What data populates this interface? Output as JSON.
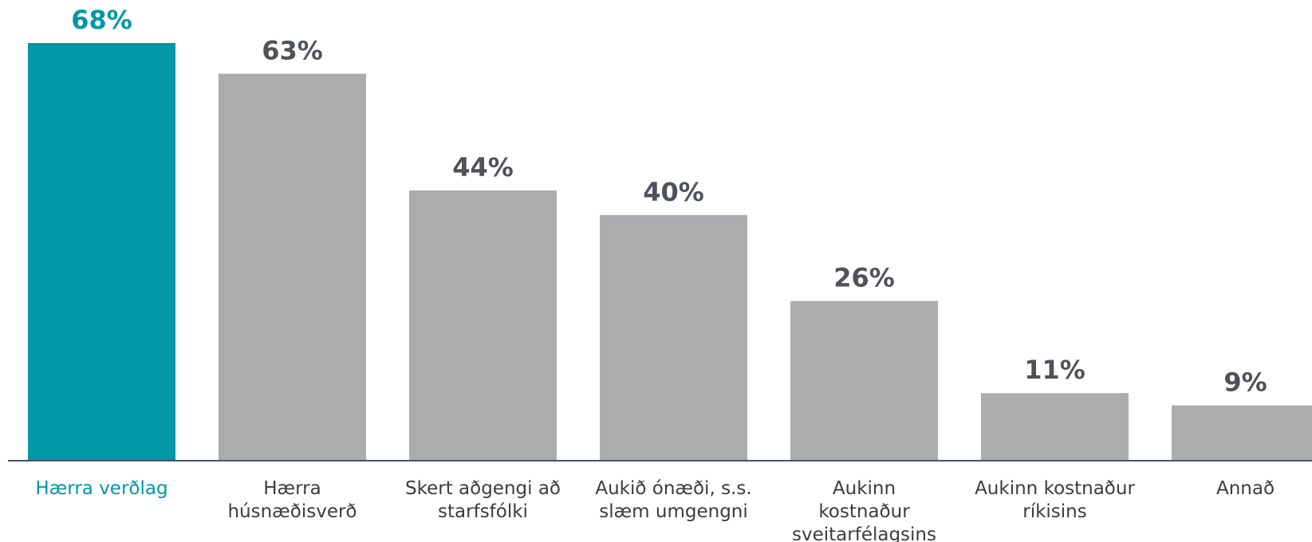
{
  "chart_data": {
    "type": "bar",
    "categories": [
      "Hærra verðlag",
      "Hærra húsnæðisverð",
      "Skert aðgengi að starfsfólki",
      "Aukið ónæði, s.s. slæm umgengni",
      "Aukinn kostnaður sveitarfélagsins",
      "Aukinn kostnaður ríkisins",
      "Annað"
    ],
    "category_lines": [
      [
        "Hærra verðlag"
      ],
      [
        "Hærra",
        "húsnæðisverð"
      ],
      [
        "Skert aðgengi að",
        "starfsfólki"
      ],
      [
        "Aukið ónæði, s.s.",
        "slæm umgengni"
      ],
      [
        "Aukinn",
        "kostnaður",
        "sveitarfélagsins"
      ],
      [
        "Aukinn kostnaður",
        "ríkisins"
      ],
      [
        "Annað"
      ]
    ],
    "values": [
      68,
      63,
      44,
      40,
      26,
      11,
      9
    ],
    "value_labels": [
      "68%",
      "63%",
      "44%",
      "40%",
      "26%",
      "11%",
      "9%"
    ],
    "highlight_index": 0,
    "ylim": [
      0,
      68
    ],
    "grid": false,
    "colors": {
      "highlight_bar": "#0097a7",
      "bar": "#abacae",
      "highlight_text": "#0097a7",
      "value_text": "#4f5258",
      "category_text": "#3c3c3c",
      "axis": "#4a5468"
    }
  }
}
